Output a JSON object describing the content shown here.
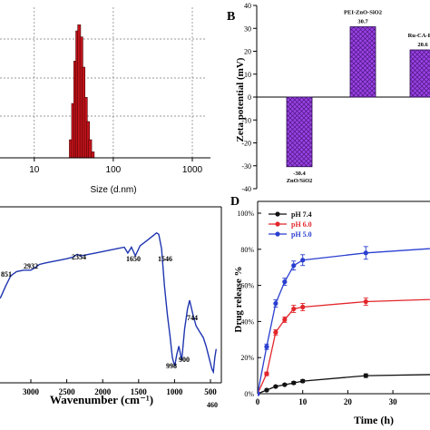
{
  "chart_data": [
    {
      "panel": "A",
      "type": "bar",
      "label": "",
      "xlabel": "Size (d.nm)",
      "xscale": "log",
      "x_ticks": [
        "10",
        "100",
        "1000"
      ],
      "color": "#c0131a",
      "bars": [
        {
          "size": 29,
          "value": 3
        },
        {
          "size": 31,
          "value": 9
        },
        {
          "size": 33,
          "value": 16
        },
        {
          "size": 35,
          "value": 21
        },
        {
          "size": 37,
          "value": 22
        },
        {
          "size": 39.5,
          "value": 20
        },
        {
          "size": 42,
          "value": 15
        },
        {
          "size": 45,
          "value": 10
        },
        {
          "size": 48,
          "value": 6
        },
        {
          "size": 51,
          "value": 3
        },
        {
          "size": 55,
          "value": 1
        }
      ],
      "grid": true
    },
    {
      "panel": "B",
      "type": "bar",
      "label": "B",
      "ylabel": "Zeta potential (mV)",
      "ylim": [
        -40,
        40
      ],
      "y_ticks": [
        "40",
        "30",
        "20",
        "10",
        "0",
        "-10",
        "-20",
        "-30",
        "-40"
      ],
      "color": "#9a42e3",
      "bars": [
        {
          "name": "ZnO/SiO2",
          "value": -30.4,
          "value_label": "-30.4"
        },
        {
          "name": "PEI-ZnO-SiO2",
          "value": 30.7,
          "value_label": "30.7"
        },
        {
          "name": "Ru-CA-PEI",
          "value": 20.6,
          "value_label": "20.6"
        }
      ]
    },
    {
      "panel": "C",
      "type": "line",
      "label": "",
      "xlabel": "Wavenumber (cm⁻¹)",
      "xlim": [
        3500,
        500
      ],
      "x_ticks": [
        "3000",
        "2500",
        "2000",
        "1500",
        "1000",
        "500"
      ],
      "color": "#1f35b0",
      "peak_labels": [
        "851",
        "2932",
        "2354",
        "1650",
        "1546",
        "744",
        "900",
        "998",
        "460"
      ],
      "spectrum": [
        [
          3500,
          52
        ],
        [
          3420,
          48
        ],
        [
          3350,
          40
        ],
        [
          3280,
          33
        ],
        [
          3200,
          30
        ],
        [
          3100,
          29
        ],
        [
          3000,
          29
        ],
        [
          2932,
          27
        ],
        [
          2880,
          25
        ],
        [
          2800,
          24
        ],
        [
          2700,
          23
        ],
        [
          2600,
          22
        ],
        [
          2500,
          21
        ],
        [
          2420,
          20
        ],
        [
          2354,
          18
        ],
        [
          2300,
          19
        ],
        [
          2200,
          18
        ],
        [
          2100,
          17
        ],
        [
          2000,
          16
        ],
        [
          1900,
          15
        ],
        [
          1800,
          14
        ],
        [
          1700,
          13
        ],
        [
          1650,
          17
        ],
        [
          1600,
          13
        ],
        [
          1546,
          19
        ],
        [
          1480,
          12
        ],
        [
          1400,
          9
        ],
        [
          1300,
          5
        ],
        [
          1250,
          3
        ],
        [
          1220,
          4
        ],
        [
          1180,
          14
        ],
        [
          1140,
          40
        ],
        [
          1100,
          60
        ],
        [
          1060,
          76
        ],
        [
          1030,
          90
        ],
        [
          998,
          96
        ],
        [
          970,
          88
        ],
        [
          940,
          82
        ],
        [
          900,
          92
        ],
        [
          860,
          70
        ],
        [
          820,
          56
        ],
        [
          790,
          50
        ],
        [
          744,
          60
        ],
        [
          700,
          68
        ],
        [
          650,
          72
        ],
        [
          600,
          76
        ],
        [
          560,
          82
        ],
        [
          520,
          90
        ],
        [
          480,
          98
        ],
        [
          460,
          100
        ],
        [
          440,
          90
        ],
        [
          420,
          84
        ]
      ]
    },
    {
      "panel": "D",
      "type": "line",
      "label": "D",
      "xlabel": "Time (h)",
      "ylabel": "Drug release %",
      "xlim": [
        0,
        40
      ],
      "ylim": [
        0,
        100
      ],
      "x_ticks": [
        "0",
        "10",
        "20",
        "30"
      ],
      "x_tick_values": [
        0,
        10,
        20,
        30
      ],
      "y_ticks": [
        "0",
        "20",
        "40",
        "60",
        "80",
        "100"
      ],
      "y_tick_values": [
        0,
        20,
        40,
        60,
        80,
        100
      ],
      "legend_position": "top-left",
      "series": [
        {
          "name": "pH 7.4",
          "color": "#111111",
          "x": [
            0,
            2,
            4,
            6,
            8,
            10,
            24,
            48
          ],
          "y": [
            0,
            2,
            4,
            5,
            6,
            7,
            10,
            11
          ],
          "err": [
            0,
            0.5,
            0.5,
            0.5,
            0.8,
            0.8,
            1,
            1
          ]
        },
        {
          "name": "pH 6.0",
          "color": "#e3262b",
          "x": [
            0,
            2,
            4,
            6,
            8,
            10,
            24,
            48
          ],
          "y": [
            0,
            11,
            34,
            41,
            47,
            48,
            51,
            53
          ],
          "err": [
            0,
            1,
            1.5,
            1.5,
            2,
            2,
            2,
            2
          ]
        },
        {
          "name": "pH 5.0",
          "color": "#2a3fd0",
          "x": [
            0,
            2,
            4,
            6,
            8,
            10,
            24,
            48
          ],
          "y": [
            0,
            26,
            50,
            62,
            71,
            74,
            78,
            82
          ],
          "err": [
            0,
            1.5,
            2,
            2,
            2.5,
            3,
            3.5,
            4
          ]
        }
      ]
    }
  ]
}
